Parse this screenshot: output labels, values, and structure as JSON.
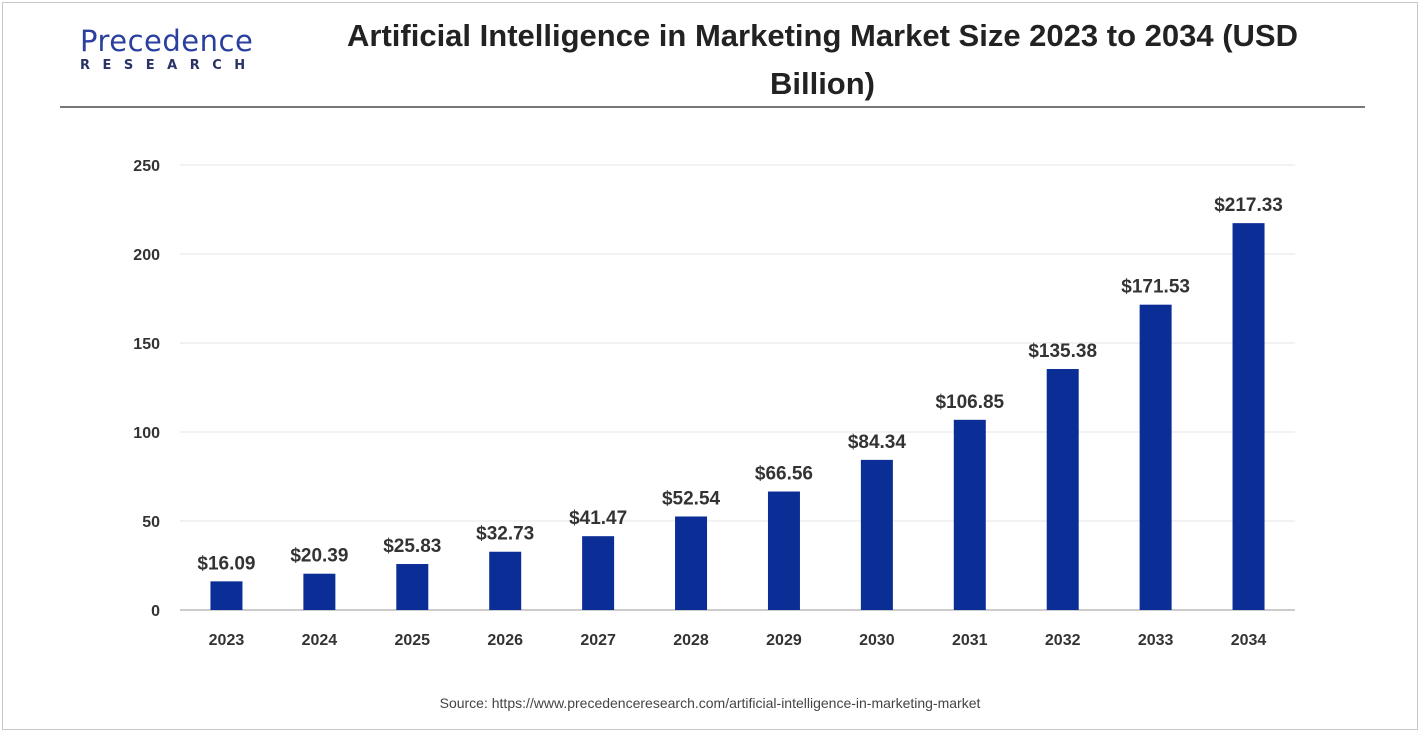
{
  "logo": {
    "name": "Precedence",
    "sub": "RESEARCH"
  },
  "source": "Source: https://www.precedenceresearch.com/artificial-intelligence-in-marketing-market",
  "colors": {
    "bar": "#0b2d96",
    "grid": "#e6e6e6",
    "axis": "#cccccc"
  },
  "chart_data": {
    "type": "bar",
    "title": "Artificial Intelligence in Marketing Market Size 2023 to 2034 (USD Billion)",
    "xlabel": "",
    "ylabel": "",
    "ylim": [
      0,
      250
    ],
    "yticks": [
      0,
      50,
      100,
      150,
      200,
      250
    ],
    "grid": true,
    "categories": [
      "2023",
      "2024",
      "2025",
      "2026",
      "2027",
      "2028",
      "2029",
      "2030",
      "2031",
      "2032",
      "2033",
      "2034"
    ],
    "values": [
      16.09,
      20.39,
      25.83,
      32.73,
      41.47,
      52.54,
      66.56,
      84.34,
      106.85,
      135.38,
      171.53,
      217.33
    ],
    "labels": [
      "$16.09",
      "$20.39",
      "$25.83",
      "$32.73",
      "$41.47",
      "$52.54",
      "$66.56",
      "$84.34",
      "$106.85",
      "$135.38",
      "$171.53",
      "$217.33"
    ]
  }
}
